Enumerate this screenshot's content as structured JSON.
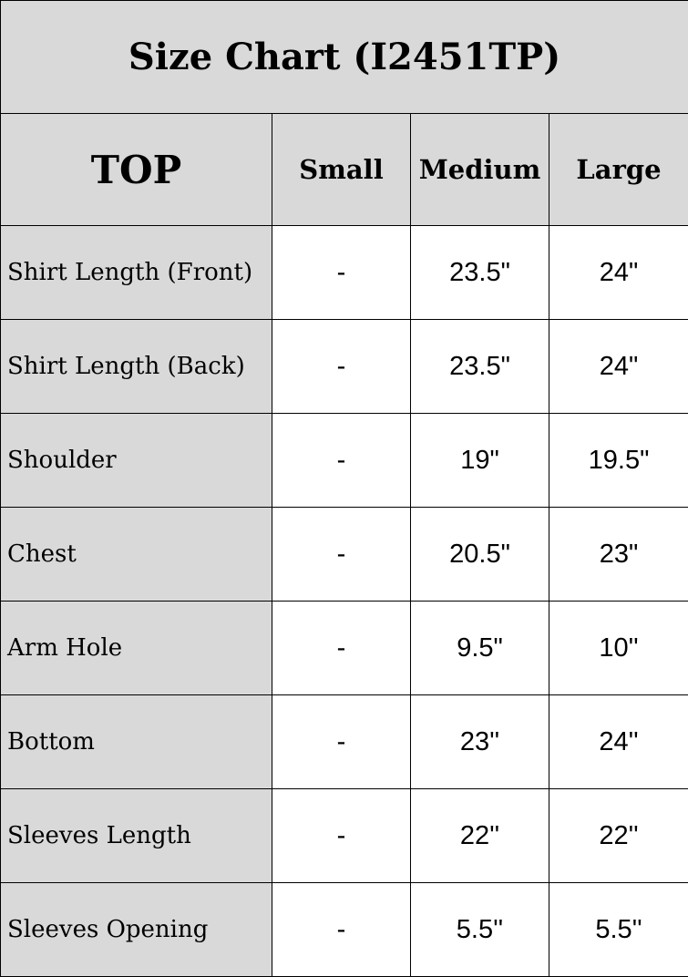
{
  "title": "Size Chart (I2451TP)",
  "header": {
    "section": "TOP",
    "sizes": [
      "Small",
      "Medium",
      "Large"
    ]
  },
  "rows": [
    {
      "label": "Shirt Length (Front)",
      "values": [
        "-",
        "23.5\"",
        "24\""
      ]
    },
    {
      "label": "Shirt Length (Back)",
      "values": [
        "-",
        "23.5\"",
        "24\""
      ]
    },
    {
      "label": "Shoulder",
      "values": [
        "-",
        "19\"",
        "19.5\""
      ]
    },
    {
      "label": "Chest",
      "values": [
        "-",
        "20.5\"",
        "23\""
      ]
    },
    {
      "label": "Arm Hole",
      "values": [
        "-",
        "9.5\"",
        "10''"
      ]
    },
    {
      "label": "Bottom",
      "values": [
        "-",
        "23''",
        "24''"
      ]
    },
    {
      "label": "Sleeves Length",
      "values": [
        "-",
        "22''",
        "22''"
      ]
    },
    {
      "label": "Sleeves Opening",
      "values": [
        "-",
        "5.5''",
        "5.5''"
      ]
    }
  ],
  "colors": {
    "header_bg": "#d9d9d9",
    "border": "#000000"
  }
}
